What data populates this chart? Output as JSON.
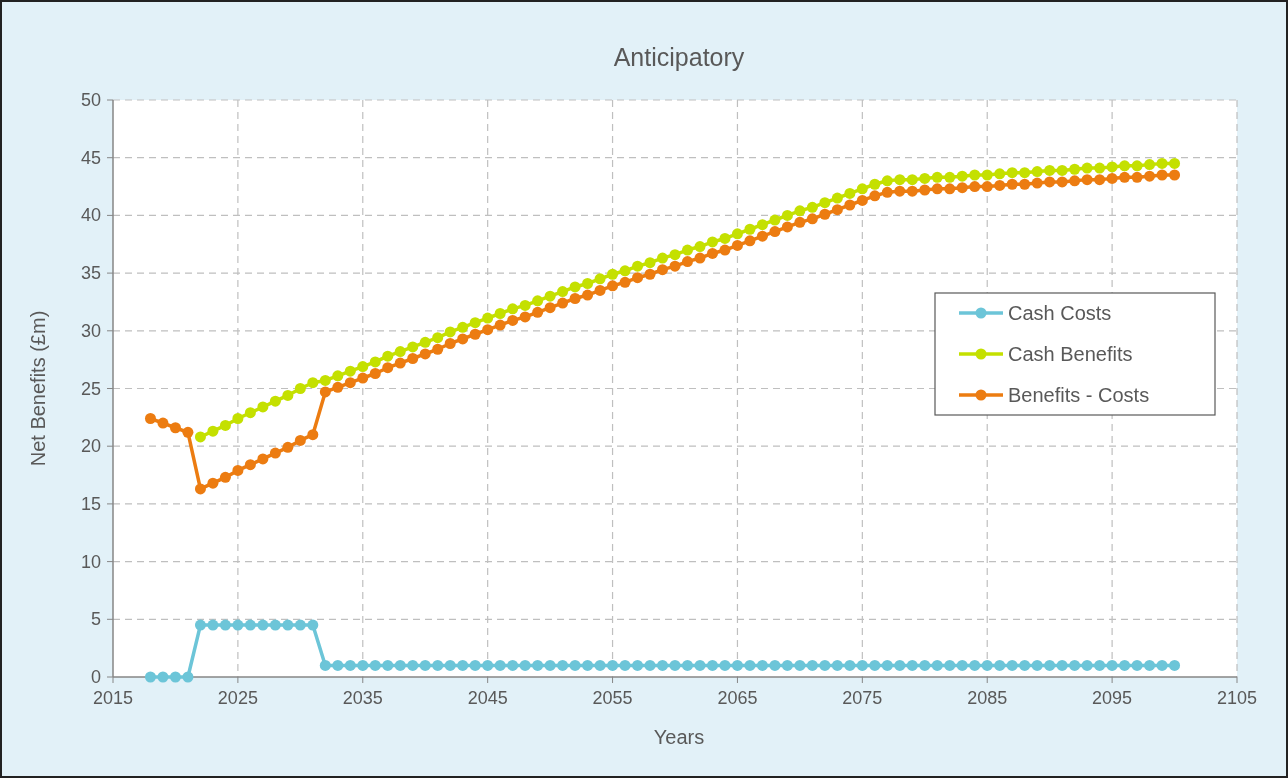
{
  "chart_data": {
    "type": "line",
    "title": "Anticipatory",
    "xlabel": "Years",
    "ylabel": "Net Benefits (£m)",
    "x": [
      2018,
      2019,
      2020,
      2021,
      2022,
      2023,
      2024,
      2025,
      2026,
      2027,
      2028,
      2029,
      2030,
      2031,
      2032,
      2033,
      2034,
      2035,
      2036,
      2037,
      2038,
      2039,
      2040,
      2041,
      2042,
      2043,
      2044,
      2045,
      2046,
      2047,
      2048,
      2049,
      2050,
      2051,
      2052,
      2053,
      2054,
      2055,
      2056,
      2057,
      2058,
      2059,
      2060,
      2061,
      2062,
      2063,
      2064,
      2065,
      2066,
      2067,
      2068,
      2069,
      2070,
      2071,
      2072,
      2073,
      2074,
      2075,
      2076,
      2077,
      2078,
      2079,
      2080,
      2081,
      2082,
      2083,
      2084,
      2085,
      2086,
      2087,
      2088,
      2089,
      2090,
      2091,
      2092,
      2093,
      2094,
      2095,
      2096,
      2097,
      2098,
      2099,
      2100
    ],
    "series": [
      {
        "name": "Cash Costs",
        "color": "#6cc5d8",
        "values": [
          0,
          0,
          0,
          0,
          4.5,
          4.5,
          4.5,
          4.5,
          4.5,
          4.5,
          4.5,
          4.5,
          4.5,
          4.5,
          1,
          1,
          1,
          1,
          1,
          1,
          1,
          1,
          1,
          1,
          1,
          1,
          1,
          1,
          1,
          1,
          1,
          1,
          1,
          1,
          1,
          1,
          1,
          1,
          1,
          1,
          1,
          1,
          1,
          1,
          1,
          1,
          1,
          1,
          1,
          1,
          1,
          1,
          1,
          1,
          1,
          1,
          1,
          1,
          1,
          1,
          1,
          1,
          1,
          1,
          1,
          1,
          1,
          1,
          1,
          1,
          1,
          1,
          1,
          1,
          1,
          1,
          1,
          1,
          1,
          1,
          1,
          1,
          1
        ]
      },
      {
        "name": "Cash Benefits",
        "color": "#c4e000",
        "values": [
          null,
          null,
          null,
          null,
          20.8,
          21.3,
          21.8,
          22.4,
          22.9,
          23.4,
          23.9,
          24.4,
          25.0,
          25.5,
          25.7,
          26.1,
          26.5,
          26.9,
          27.3,
          27.8,
          28.2,
          28.6,
          29.0,
          29.4,
          29.9,
          30.3,
          30.7,
          31.1,
          31.5,
          31.9,
          32.2,
          32.6,
          33.0,
          33.4,
          33.8,
          34.1,
          34.5,
          34.9,
          35.2,
          35.6,
          35.9,
          36.3,
          36.6,
          37.0,
          37.3,
          37.7,
          38.0,
          38.4,
          38.8,
          39.2,
          39.6,
          40.0,
          40.4,
          40.7,
          41.1,
          41.5,
          41.9,
          42.3,
          42.7,
          43.0,
          43.1,
          43.1,
          43.2,
          43.3,
          43.3,
          43.4,
          43.5,
          43.5,
          43.6,
          43.7,
          43.7,
          43.8,
          43.9,
          43.9,
          44.0,
          44.1,
          44.1,
          44.2,
          44.3,
          44.3,
          44.4,
          44.5,
          44.5
        ]
      },
      {
        "name": "Benefits - Costs",
        "color": "#ec7c11",
        "values": [
          22.4,
          22.0,
          21.6,
          21.2,
          16.3,
          16.8,
          17.3,
          17.9,
          18.4,
          18.9,
          19.4,
          19.9,
          20.5,
          21.0,
          24.7,
          25.1,
          25.5,
          25.9,
          26.3,
          26.8,
          27.2,
          27.6,
          28.0,
          28.4,
          28.9,
          29.3,
          29.7,
          30.1,
          30.5,
          30.9,
          31.2,
          31.6,
          32.0,
          32.4,
          32.8,
          33.1,
          33.5,
          33.9,
          34.2,
          34.6,
          34.9,
          35.3,
          35.6,
          36.0,
          36.3,
          36.7,
          37.0,
          37.4,
          37.8,
          38.2,
          38.6,
          39.0,
          39.4,
          39.7,
          40.1,
          40.5,
          40.9,
          41.3,
          41.7,
          42.0,
          42.1,
          42.1,
          42.2,
          42.3,
          42.3,
          42.4,
          42.5,
          42.5,
          42.6,
          42.7,
          42.7,
          42.8,
          42.9,
          42.9,
          43.0,
          43.1,
          43.1,
          43.2,
          43.3,
          43.3,
          43.4,
          43.5,
          43.5
        ]
      }
    ],
    "xlim": [
      2015,
      2105
    ],
    "xticks": [
      2015,
      2025,
      2035,
      2045,
      2055,
      2065,
      2075,
      2085,
      2095,
      2105
    ],
    "ylim": [
      0,
      50
    ],
    "yticks": [
      0,
      5,
      10,
      15,
      20,
      25,
      30,
      35,
      40,
      45,
      50
    ],
    "grid": true,
    "legend": "right",
    "marker": "circle",
    "line_style": "solid"
  }
}
